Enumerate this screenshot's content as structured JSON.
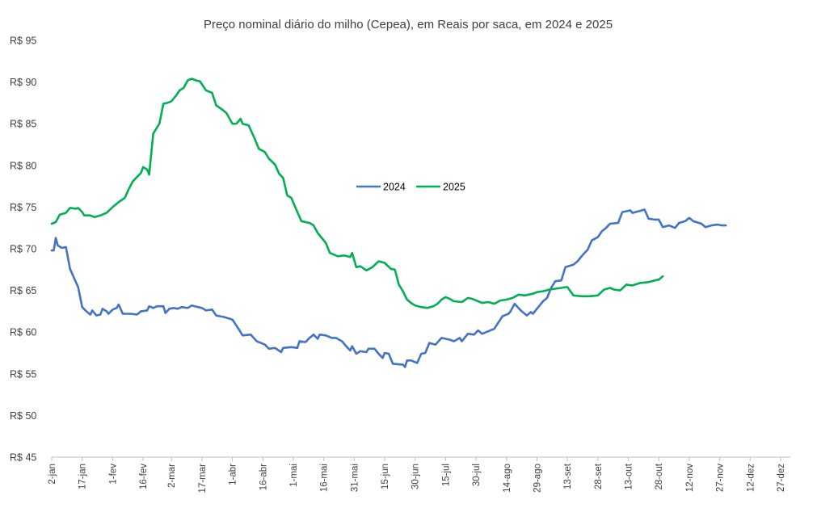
{
  "chart_data": {
    "type": "line",
    "title": "Preço nominal diário do milho (Cepea), em Reais por saca, em 2024 e 2025",
    "xlabel": "",
    "ylabel": "",
    "ylim": [
      45,
      95
    ],
    "y_ticks": [
      45,
      50,
      55,
      60,
      65,
      70,
      75,
      80,
      85,
      90,
      95
    ],
    "y_tick_labels": [
      "R$ 45",
      "R$ 50",
      "R$ 55",
      "R$ 60",
      "R$ 65",
      "R$ 70",
      "R$ 75",
      "R$ 80",
      "R$ 85",
      "R$ 90",
      "R$ 95"
    ],
    "x_tick_labels": [
      "2-jan",
      "17-jan",
      "1-fev",
      "16-fev",
      "2-mar",
      "17-mar",
      "1-abr",
      "16-abr",
      "1-mai",
      "16-mai",
      "31-mai",
      "15-jun",
      "30-jun",
      "15-jul",
      "30-jul",
      "14-ago",
      "29-ago",
      "13-set",
      "28-set",
      "13-out",
      "28-out",
      "12-nov",
      "27-nov",
      "12-dez",
      "27-dez"
    ],
    "grid": false,
    "legend_position": "center",
    "series": [
      {
        "name": "2024",
        "color": "#4472C4",
        "points": [
          [
            "2-jan",
            69.8
          ],
          [
            "3-jan",
            69.8
          ],
          [
            "4-jan",
            71.3
          ],
          [
            "5-jan",
            70.4
          ],
          [
            "7-jan",
            70.1
          ],
          [
            "9-jan",
            70.2
          ],
          [
            "11-jan",
            67.6
          ],
          [
            "13-jan",
            66.5
          ],
          [
            "15-jan",
            65.4
          ],
          [
            "17-jan",
            63.0
          ],
          [
            "19-jan",
            62.5
          ],
          [
            "21-jan",
            62.1
          ],
          [
            "22-jan",
            62.6
          ],
          [
            "24-jan",
            62.0
          ],
          [
            "26-jan",
            62.1
          ],
          [
            "27-jan",
            62.8
          ],
          [
            "29-jan",
            62.5
          ],
          [
            "30-jan",
            62.2
          ],
          [
            "1-fev",
            62.7
          ],
          [
            "3-fev",
            62.9
          ],
          [
            "4-fev",
            63.3
          ],
          [
            "6-fev",
            62.2
          ],
          [
            "10-fev",
            62.2
          ],
          [
            "13-fev",
            62.1
          ],
          [
            "15-fev",
            62.5
          ],
          [
            "18-fev",
            62.6
          ],
          [
            "19-fev",
            63.1
          ],
          [
            "21-fev",
            62.9
          ],
          [
            "23-fev",
            63.1
          ],
          [
            "26-fev",
            63.1
          ],
          [
            "27-fev",
            62.3
          ],
          [
            "29-fev",
            62.8
          ],
          [
            "3-mar",
            62.9
          ],
          [
            "5-mar",
            62.8
          ],
          [
            "7-mar",
            63.0
          ],
          [
            "10-mar",
            62.9
          ],
          [
            "12-mar",
            63.2
          ],
          [
            "15-mar",
            63.0
          ],
          [
            "17-mar",
            62.9
          ],
          [
            "19-mar",
            62.6
          ],
          [
            "22-mar",
            62.7
          ],
          [
            "24-mar",
            62.0
          ],
          [
            "28-mar",
            61.8
          ],
          [
            "1-abr",
            61.5
          ],
          [
            "4-abr",
            60.4
          ],
          [
            "6-abr",
            59.6
          ],
          [
            "10-abr",
            59.7
          ],
          [
            "13-abr",
            58.9
          ],
          [
            "17-abr",
            58.5
          ],
          [
            "19-abr",
            58.0
          ],
          [
            "22-abr",
            58.1
          ],
          [
            "25-abr",
            57.6
          ],
          [
            "26-abr",
            58.1
          ],
          [
            "30-abr",
            58.2
          ],
          [
            "3-mai",
            58.1
          ],
          [
            "4-mai",
            58.9
          ],
          [
            "7-mai",
            58.8
          ],
          [
            "9-mai",
            59.3
          ],
          [
            "11-mai",
            59.7
          ],
          [
            "13-mai",
            59.2
          ],
          [
            "14-mai",
            59.7
          ],
          [
            "17-mai",
            59.6
          ],
          [
            "20-mai",
            59.3
          ],
          [
            "22-mai",
            59.3
          ],
          [
            "25-mai",
            58.9
          ],
          [
            "27-mai",
            58.3
          ],
          [
            "29-mai",
            57.8
          ],
          [
            "30-mai",
            58.3
          ],
          [
            "1-jun",
            57.4
          ],
          [
            "3-jun",
            57.7
          ],
          [
            "6-jun",
            57.6
          ],
          [
            "7-jun",
            58.0
          ],
          [
            "10-jun",
            58.0
          ],
          [
            "12-jun",
            57.4
          ],
          [
            "14-jun",
            56.9
          ],
          [
            "15-jun",
            57.5
          ],
          [
            "17-jun",
            57.4
          ],
          [
            "19-jun",
            56.2
          ],
          [
            "24-jun",
            56.1
          ],
          [
            "25-jun",
            55.8
          ],
          [
            "26-jun",
            56.6
          ],
          [
            "28-jun",
            56.6
          ],
          [
            "1-jul",
            56.3
          ],
          [
            "3-jul",
            57.4
          ],
          [
            "5-jul",
            57.5
          ],
          [
            "7-jul",
            58.7
          ],
          [
            "10-jul",
            58.5
          ],
          [
            "13-jul",
            59.3
          ],
          [
            "15-jul",
            59.2
          ],
          [
            "17-jul",
            59.1
          ],
          [
            "19-jul",
            58.9
          ],
          [
            "22-jul",
            59.3
          ],
          [
            "23-jul",
            58.9
          ],
          [
            "26-jul",
            59.8
          ],
          [
            "29-jul",
            59.7
          ],
          [
            "31-jul",
            60.2
          ],
          [
            "2-ago",
            59.8
          ],
          [
            "5-ago",
            60.1
          ],
          [
            "8-ago",
            60.4
          ],
          [
            "12-ago",
            61.9
          ],
          [
            "15-ago",
            62.2
          ],
          [
            "16-ago",
            62.5
          ],
          [
            "18-ago",
            63.4
          ],
          [
            "21-ago",
            62.6
          ],
          [
            "24-ago",
            62.0
          ],
          [
            "26-ago",
            62.4
          ],
          [
            "27-ago",
            62.2
          ],
          [
            "30-ago",
            63.1
          ],
          [
            "1-set",
            63.7
          ],
          [
            "3-set",
            64.1
          ],
          [
            "5-set",
            65.3
          ],
          [
            "7-set",
            66.1
          ],
          [
            "10-set",
            66.2
          ],
          [
            "12-set",
            67.8
          ],
          [
            "16-set",
            68.1
          ],
          [
            "18-set",
            68.5
          ],
          [
            "20-set",
            69.1
          ],
          [
            "23-set",
            69.9
          ],
          [
            "25-set",
            71.0
          ],
          [
            "28-set",
            71.4
          ],
          [
            "30-set",
            72.1
          ],
          [
            "2-out",
            72.5
          ],
          [
            "4-out",
            73.0
          ],
          [
            "8-out",
            73.1
          ],
          [
            "10-out",
            74.4
          ],
          [
            "14-out",
            74.6
          ],
          [
            "15-out",
            74.3
          ],
          [
            "18-out",
            74.5
          ],
          [
            "21-out",
            74.7
          ],
          [
            "23-out",
            73.6
          ],
          [
            "26-out",
            73.5
          ],
          [
            "28-out",
            73.5
          ],
          [
            "30-out",
            72.6
          ],
          [
            "2-nov",
            72.8
          ],
          [
            "5-nov",
            72.5
          ],
          [
            "7-nov",
            73.1
          ],
          [
            "10-nov",
            73.3
          ],
          [
            "12-nov",
            73.7
          ],
          [
            "14-nov",
            73.3
          ],
          [
            "18-nov",
            73.0
          ],
          [
            "20-nov",
            72.6
          ],
          [
            "23-nov",
            72.8
          ],
          [
            "26-nov",
            72.9
          ],
          [
            "28-nov",
            72.8
          ],
          [
            "30-nov",
            72.8
          ]
        ]
      },
      {
        "name": "2025",
        "color": "#00B050",
        "points": [
          [
            "2-jan",
            73.0
          ],
          [
            "4-jan",
            73.2
          ],
          [
            "6-jan",
            74.1
          ],
          [
            "9-jan",
            74.3
          ],
          [
            "11-jan",
            74.9
          ],
          [
            "14-jan",
            74.8
          ],
          [
            "15-jan",
            74.9
          ],
          [
            "17-jan",
            74.4
          ],
          [
            "18-jan",
            74.0
          ],
          [
            "21-jan",
            74.0
          ],
          [
            "23-jan",
            73.8
          ],
          [
            "26-jan",
            74.0
          ],
          [
            "29-jan",
            74.3
          ],
          [
            "1-fev",
            75.0
          ],
          [
            "4-fev",
            75.6
          ],
          [
            "7-fev",
            76.1
          ],
          [
            "9-fev",
            77.2
          ],
          [
            "11-fev",
            78.1
          ],
          [
            "13-fev",
            78.6
          ],
          [
            "15-fev",
            79.1
          ],
          [
            "16-fev",
            79.8
          ],
          [
            "18-fev",
            79.5
          ],
          [
            "19-fev",
            78.9
          ],
          [
            "21-fev",
            83.8
          ],
          [
            "23-fev",
            84.6
          ],
          [
            "24-fev",
            85.0
          ],
          [
            "26-fev",
            87.4
          ],
          [
            "28-fev",
            87.5
          ],
          [
            "2-mar",
            87.7
          ],
          [
            "4-mar",
            88.3
          ],
          [
            "6-mar",
            89.0
          ],
          [
            "8-mar",
            89.3
          ],
          [
            "10-mar",
            90.2
          ],
          [
            "12-mar",
            90.4
          ],
          [
            "14-mar",
            90.2
          ],
          [
            "16-mar",
            90.1
          ],
          [
            "19-mar",
            89.0
          ],
          [
            "22-mar",
            88.7
          ],
          [
            "24-mar",
            87.2
          ],
          [
            "27-mar",
            86.7
          ],
          [
            "29-mar",
            86.3
          ],
          [
            "1-abr",
            85.0
          ],
          [
            "3-abr",
            85.0
          ],
          [
            "5-abr",
            85.6
          ],
          [
            "6-abr",
            85.0
          ],
          [
            "9-abr",
            84.8
          ],
          [
            "12-abr",
            83.2
          ],
          [
            "14-abr",
            82.0
          ],
          [
            "17-abr",
            81.6
          ],
          [
            "19-abr",
            80.8
          ],
          [
            "22-abr",
            80.1
          ],
          [
            "24-abr",
            79.0
          ],
          [
            "26-abr",
            78.5
          ],
          [
            "28-abr",
            76.4
          ],
          [
            "30-abr",
            76.1
          ],
          [
            "3-mai",
            74.4
          ],
          [
            "5-mai",
            73.3
          ],
          [
            "9-mai",
            73.1
          ],
          [
            "11-mai",
            72.8
          ],
          [
            "13-mai",
            71.9
          ],
          [
            "14-mai",
            71.6
          ],
          [
            "17-mai",
            70.7
          ],
          [
            "19-mai",
            69.5
          ],
          [
            "23-mai",
            69.1
          ],
          [
            "26-mai",
            69.2
          ],
          [
            "29-mai",
            69.0
          ],
          [
            "30-mai",
            69.5
          ],
          [
            "1-jun",
            67.8
          ],
          [
            "3-jun",
            67.9
          ],
          [
            "6-jun",
            67.4
          ],
          [
            "9-jun",
            67.8
          ],
          [
            "12-jun",
            68.5
          ],
          [
            "15-jun",
            68.3
          ],
          [
            "18-jun",
            67.6
          ],
          [
            "20-jun",
            67.5
          ],
          [
            "22-jun",
            65.7
          ],
          [
            "24-jun",
            64.9
          ],
          [
            "26-jun",
            63.9
          ],
          [
            "28-jun",
            63.5
          ],
          [
            "30-jun",
            63.2
          ],
          [
            "3-jul",
            63.0
          ],
          [
            "6-jul",
            62.9
          ],
          [
            "9-jul",
            63.1
          ],
          [
            "11-jul",
            63.4
          ],
          [
            "13-jul",
            63.9
          ],
          [
            "15-jul",
            64.2
          ],
          [
            "17-jul",
            64.0
          ],
          [
            "19-jul",
            63.7
          ],
          [
            "23-jul",
            63.6
          ],
          [
            "26-jul",
            64.1
          ],
          [
            "28-jul",
            64.0
          ],
          [
            "30-jul",
            63.8
          ],
          [
            "2-ago",
            63.5
          ],
          [
            "5-ago",
            63.6
          ],
          [
            "8-ago",
            63.4
          ],
          [
            "11-ago",
            63.8
          ],
          [
            "14-ago",
            63.9
          ],
          [
            "17-ago",
            64.1
          ],
          [
            "20-ago",
            64.5
          ],
          [
            "23-ago",
            64.4
          ],
          [
            "27-ago",
            64.6
          ],
          [
            "29-ago",
            64.8
          ],
          [
            "1-set",
            64.9
          ],
          [
            "4-set",
            65.1
          ],
          [
            "7-set",
            65.2
          ],
          [
            "10-set",
            65.3
          ],
          [
            "12-set",
            65.4
          ],
          [
            "13-set",
            65.4
          ],
          [
            "16-set",
            64.4
          ],
          [
            "20-set",
            64.3
          ],
          [
            "24-set",
            64.3
          ],
          [
            "28-set",
            64.4
          ],
          [
            "1-out",
            65.1
          ],
          [
            "4-out",
            65.3
          ],
          [
            "6-out",
            65.1
          ],
          [
            "9-out",
            65.0
          ],
          [
            "12-out",
            65.7
          ],
          [
            "15-out",
            65.6
          ],
          [
            "19-out",
            65.9
          ],
          [
            "23-out",
            66.0
          ],
          [
            "26-out",
            66.2
          ],
          [
            "28-out",
            66.3
          ],
          [
            "30-out",
            66.7
          ]
        ]
      }
    ]
  }
}
